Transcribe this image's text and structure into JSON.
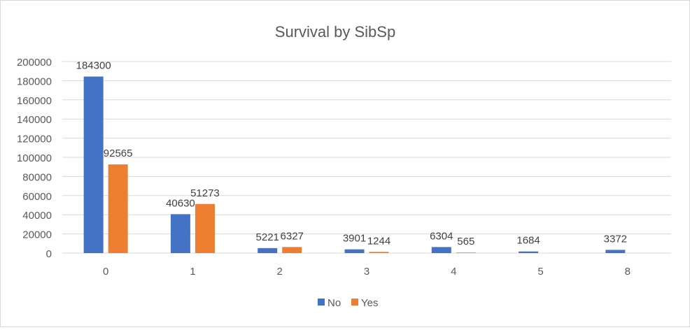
{
  "chart_data": {
    "type": "bar",
    "title": "Survival by SibSp",
    "xlabel": "",
    "ylabel": "",
    "categories": [
      "0",
      "1",
      "2",
      "3",
      "4",
      "5",
      "8"
    ],
    "series": [
      {
        "name": "No",
        "values": [
          184300,
          40630,
          5221,
          3901,
          6304,
          1684,
          3372
        ],
        "color": "#4472C4"
      },
      {
        "name": "Yes",
        "values": [
          92565,
          51273,
          6327,
          1244,
          565,
          null,
          null
        ],
        "color": "#ED7D31"
      }
    ],
    "ylim": [
      0,
      200000
    ],
    "yticks": [
      "0",
      "20000",
      "40000",
      "60000",
      "80000",
      "100000",
      "120000",
      "140000",
      "160000",
      "180000",
      "200000"
    ],
    "grid": true,
    "legend_position": "bottom",
    "data_labels": true
  }
}
